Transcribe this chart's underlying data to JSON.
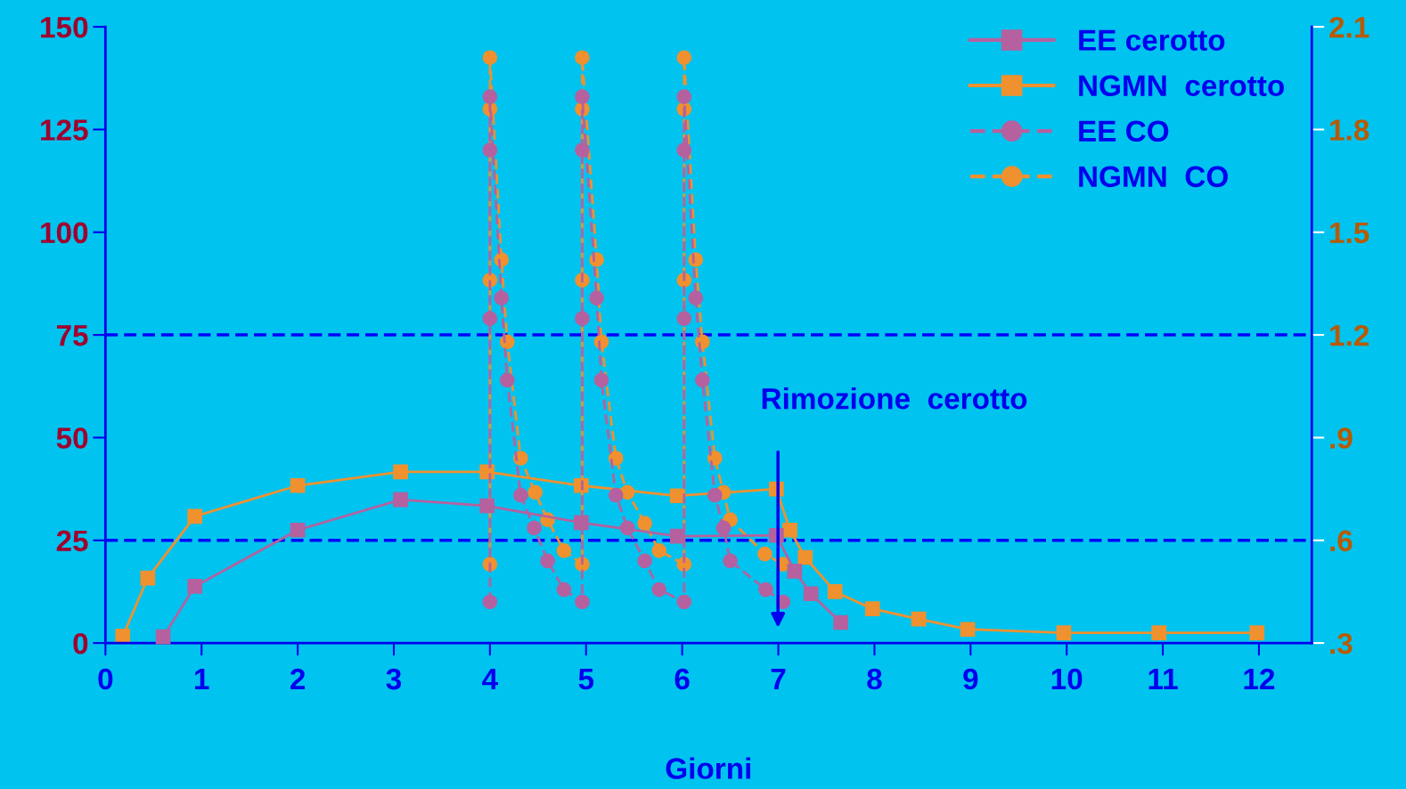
{
  "chart_data": {
    "type": "line",
    "xlabel": "Giorni",
    "xlim": [
      0,
      12.55
    ],
    "xticks": [
      0,
      1,
      2,
      3,
      4,
      5,
      6,
      7,
      8,
      9,
      10,
      11,
      12
    ],
    "ylim": [
      0,
      150
    ],
    "yticks": [
      0,
      25,
      50,
      75,
      100,
      125,
      150
    ],
    "y2lim": [
      0.3,
      2.1
    ],
    "y2ticks": [
      {
        "value": 0.3,
        "label": ".3"
      },
      {
        "value": 0.6,
        "label": ".6"
      },
      {
        "value": 0.9,
        "label": ".9"
      },
      1.2,
      1.5,
      1.8,
      2.1
    ],
    "grid": false,
    "legend": "top right",
    "series": [
      {
        "name": "EE cerotto",
        "color": "#b5619f",
        "marker": "square",
        "line_style": "solid",
        "x": [
          0.6,
          0.93,
          2.0,
          3.07,
          3.97,
          4.95,
          5.95,
          6.98,
          7.17,
          7.34,
          7.65
        ],
        "values": [
          1.5,
          13.8,
          27.5,
          34.9,
          33.4,
          29.3,
          26,
          26.2,
          17.5,
          12,
          5
        ]
      },
      {
        "name": "NGMN  cerotto",
        "color": "#f0912f",
        "marker": "square",
        "line_style": "solid",
        "axis": "y2",
        "x": [
          0.18,
          0.44,
          0.93,
          2.0,
          3.07,
          3.97,
          4.95,
          5.95,
          6.98,
          7.12,
          7.28,
          7.59,
          7.98,
          8.46,
          8.97,
          9.97,
          10.96,
          11.98
        ],
        "values": [
          0.32,
          0.49,
          0.67,
          0.76,
          0.8,
          0.8,
          0.76,
          0.73,
          0.75,
          0.63,
          0.55,
          0.45,
          0.4,
          0.37,
          0.34,
          0.33,
          0.33,
          0.33
        ]
      },
      {
        "name": "EE CO",
        "color": "#b5619f",
        "marker": "circle",
        "line_style": "dashed",
        "x": [
          4.0,
          4.0,
          4.0,
          4.0,
          4.12,
          4.18,
          4.32,
          4.46,
          4.6,
          4.77,
          4.96,
          4.96,
          4.96,
          4.96,
          5.11,
          5.16,
          5.31,
          5.43,
          5.61,
          5.76,
          6.02,
          6.02,
          6.02,
          6.02,
          6.14,
          6.21,
          6.34,
          6.43,
          6.5,
          6.87,
          7.05
        ],
        "values": [
          10,
          79,
          120,
          133,
          84,
          64,
          36,
          28,
          20,
          13,
          10,
          79,
          120,
          133,
          84,
          64,
          36,
          28,
          20,
          13,
          10,
          79,
          120,
          133,
          84,
          64,
          36,
          28,
          20,
          13,
          10
        ]
      },
      {
        "name": "NGMN  CO",
        "color": "#f0912f",
        "marker": "circle",
        "line_style": "dashed",
        "axis": "y2",
        "x": [
          4.0,
          4.0,
          4.0,
          4.0,
          4.12,
          4.18,
          4.32,
          4.47,
          4.6,
          4.77,
          4.96,
          4.96,
          4.96,
          4.96,
          5.11,
          5.16,
          5.31,
          5.43,
          5.61,
          5.76,
          6.02,
          6.02,
          6.02,
          6.02,
          6.14,
          6.21,
          6.34,
          6.43,
          6.5,
          6.86,
          7.05
        ],
        "values": [
          0.53,
          1.36,
          1.86,
          2.01,
          1.42,
          1.18,
          0.84,
          0.74,
          0.66,
          0.57,
          0.53,
          1.36,
          1.86,
          2.01,
          1.42,
          1.18,
          0.84,
          0.74,
          0.65,
          0.57,
          0.53,
          1.36,
          1.86,
          2.01,
          1.42,
          1.18,
          0.84,
          0.74,
          0.66,
          0.56,
          0.53
        ]
      }
    ],
    "ref_lines": [
      {
        "axis": "y2",
        "value": 1.2,
        "color": "#0000ff",
        "line_style": "dashed"
      },
      {
        "axis": "y2",
        "value": 0.6,
        "color": "#0000ff",
        "line_style": "dashed"
      }
    ],
    "annotations": [
      "Rimozione  cerotto"
    ]
  }
}
